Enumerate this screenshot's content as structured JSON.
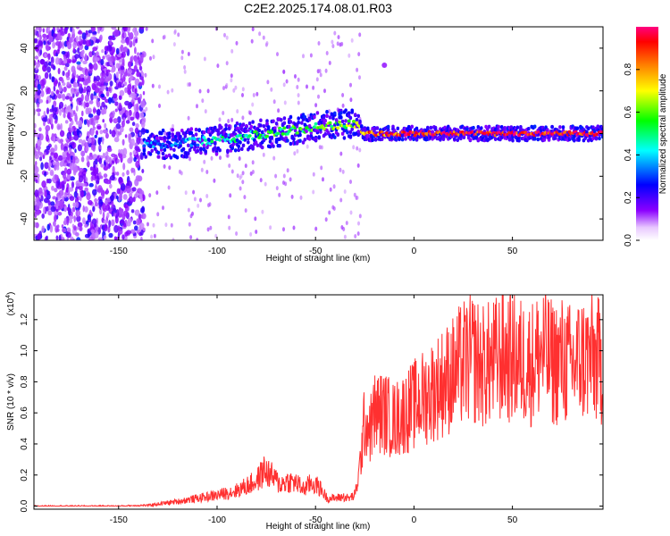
{
  "title": "C2E2.2025.174.08.01.R03",
  "chart_data": [
    {
      "type": "heatmap",
      "xlabel": "Height of straight line (km)",
      "ylabel": "Frequency (Hz)",
      "xlim": [
        -193,
        96
      ],
      "ylim": [
        -50,
        50
      ],
      "x_ticks": [
        -150,
        -100,
        -50,
        0,
        50
      ],
      "x_tick_labels": [
        "-150",
        "-100",
        "-50",
        "0",
        "50"
      ],
      "y_ticks": [
        -40,
        -20,
        0,
        20,
        40
      ],
      "y_tick_labels": [
        "-40",
        "-20",
        "0",
        "20",
        "40"
      ],
      "colorbar": {
        "label": "Normalized spectral amplitude",
        "range": [
          0,
          1
        ],
        "ticks": [
          0.0,
          0.2,
          0.4,
          0.6,
          0.8
        ],
        "tick_labels": [
          "0.0",
          "0.2",
          "0.4",
          "0.6",
          "0.8"
        ],
        "colormap": [
          "#ffffff",
          "#8b00ff",
          "#0000ff",
          "#00ffff",
          "#00ff00",
          "#ffff00",
          "#ff8000",
          "#ff0000",
          "#ff0080"
        ]
      },
      "features": {
        "noise_region_x": [
          -193,
          -137
        ],
        "signal_band": {
          "x": [
            -137,
            -125,
            -100,
            -75,
            -50,
            -30,
            -25,
            0,
            25,
            50,
            75,
            96
          ],
          "center_hz": [
            -5,
            -5,
            -3,
            0,
            3,
            5,
            0,
            0,
            0,
            0,
            0,
            0
          ],
          "amplitude": [
            0.35,
            0.3,
            0.45,
            0.5,
            0.55,
            0.6,
            0.8,
            0.95,
            0.95,
            0.95,
            0.95,
            0.95
          ]
        }
      }
    },
    {
      "type": "line",
      "xlabel": "Height of straight line (km)",
      "ylabel": "SNR (10 * v/v)",
      "y_multiplier_label": "(x10",
      "y_multiplier_exp": "4",
      "xlim": [
        -193,
        96
      ],
      "ylim": [
        -0.02,
        1.36
      ],
      "x_ticks": [
        -150,
        -100,
        -50,
        0,
        50
      ],
      "x_tick_labels": [
        "-150",
        "-100",
        "-50",
        "0",
        "50"
      ],
      "y_ticks": [
        0.0,
        0.2,
        0.4,
        0.6,
        0.8,
        1.0,
        1.2
      ],
      "y_tick_labels": [
        "0.0",
        "0.2",
        "0.4",
        "0.6",
        "0.8",
        "1.0",
        "1.2"
      ],
      "color": "#ff3030",
      "series": [
        {
          "x": [
            -193,
            -150,
            -135,
            -120,
            -110,
            -100,
            -90,
            -85,
            -80,
            -76,
            -72,
            -68,
            -64,
            -60,
            -56,
            -52,
            -48,
            -44,
            -40,
            -36,
            -33,
            -30,
            -28,
            -25,
            -22,
            -20,
            -15,
            -10,
            -5,
            0,
            5,
            10,
            15,
            20,
            25,
            30,
            35,
            40,
            45,
            50,
            55,
            60,
            65,
            70,
            75,
            80,
            85,
            90,
            96
          ],
          "values": [
            0.0,
            0.0,
            0.005,
            0.03,
            0.05,
            0.07,
            0.1,
            0.13,
            0.16,
            0.23,
            0.19,
            0.14,
            0.16,
            0.15,
            0.11,
            0.15,
            0.12,
            0.05,
            0.05,
            0.06,
            0.05,
            0.07,
            0.2,
            0.55,
            0.5,
            0.6,
            0.6,
            0.55,
            0.6,
            0.65,
            0.7,
            0.75,
            0.8,
            0.85,
            0.92,
            0.95,
            0.9,
            0.92,
            0.97,
            0.95,
            0.93,
            0.92,
            1.0,
            0.92,
            0.94,
            0.9,
            0.95,
            0.95,
            0.92
          ]
        }
      ]
    }
  ]
}
